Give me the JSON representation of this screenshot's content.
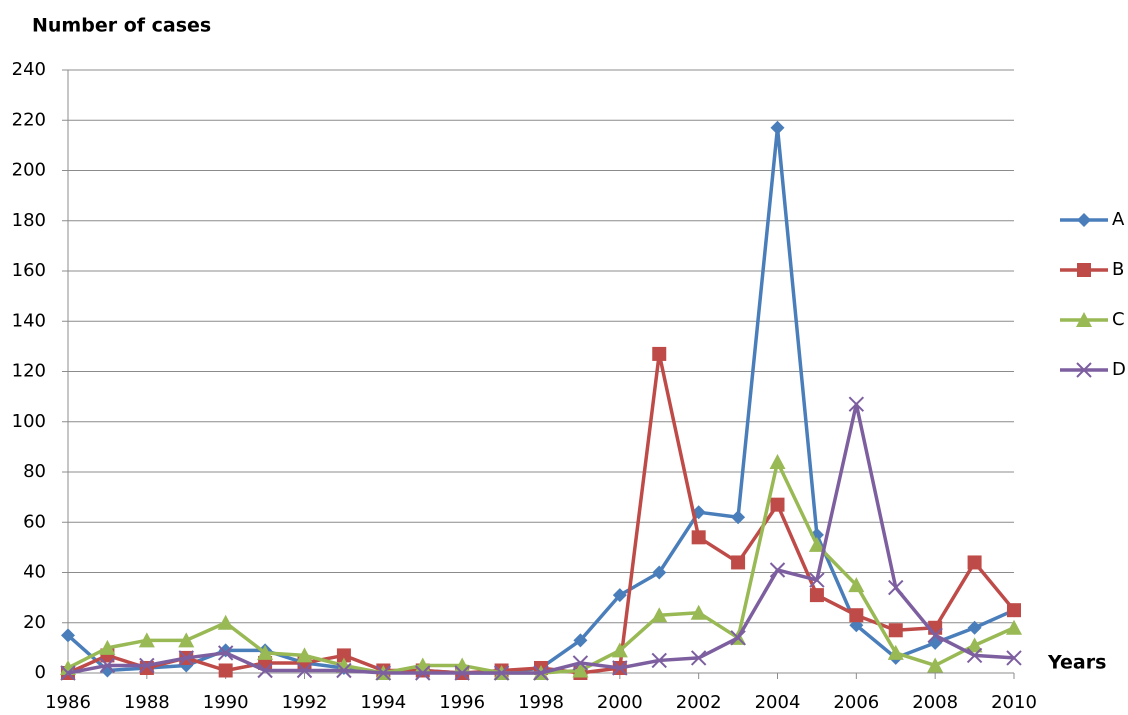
{
  "chart_data": {
    "type": "line",
    "y_label": "Number of cases",
    "x_label": "Years",
    "x": [
      1986,
      1987,
      1988,
      1989,
      1990,
      1991,
      1992,
      1993,
      1994,
      1995,
      1996,
      1997,
      1998,
      1999,
      2000,
      2001,
      2002,
      2003,
      2004,
      2005,
      2006,
      2007,
      2008,
      2009,
      2010
    ],
    "xlim": [
      1986,
      2010
    ],
    "xticks": [
      1986,
      1988,
      1990,
      1992,
      1994,
      1996,
      1998,
      2000,
      2002,
      2004,
      2006,
      2008,
      2010
    ],
    "ylim": [
      0,
      240
    ],
    "yticks": [
      0,
      20,
      40,
      60,
      80,
      100,
      120,
      140,
      160,
      180,
      200,
      220,
      240
    ],
    "grid": true,
    "legend": "right",
    "series": [
      {
        "name": "A",
        "color": "#4a7ebb",
        "marker": "diamond",
        "values": [
          15,
          1,
          2,
          3,
          9,
          9,
          4,
          2,
          0,
          1,
          0,
          0,
          2,
          13,
          31,
          40,
          64,
          62,
          217,
          55,
          19,
          6,
          12,
          18,
          25
        ]
      },
      {
        "name": "B",
        "color": "#be4b48",
        "marker": "square",
        "values": [
          0,
          7,
          2,
          6,
          1,
          4,
          4,
          7,
          1,
          1,
          0,
          1,
          2,
          0,
          2,
          127,
          54,
          44,
          67,
          31,
          23,
          17,
          18,
          44,
          25
        ]
      },
      {
        "name": "C",
        "color": "#98b954",
        "marker": "triangle",
        "values": [
          2,
          10,
          13,
          13,
          20,
          8,
          7,
          3,
          0,
          3,
          3,
          0,
          0,
          1,
          9,
          23,
          24,
          14,
          84,
          51,
          35,
          8,
          3,
          11,
          18
        ]
      },
      {
        "name": "D",
        "color": "#7d5fa0",
        "marker": "x",
        "values": [
          0,
          3,
          3,
          6,
          8,
          1,
          1,
          1,
          0,
          0,
          0,
          0,
          0,
          4,
          2,
          5,
          6,
          14,
          41,
          37,
          107,
          34,
          15,
          7,
          6
        ]
      }
    ]
  }
}
